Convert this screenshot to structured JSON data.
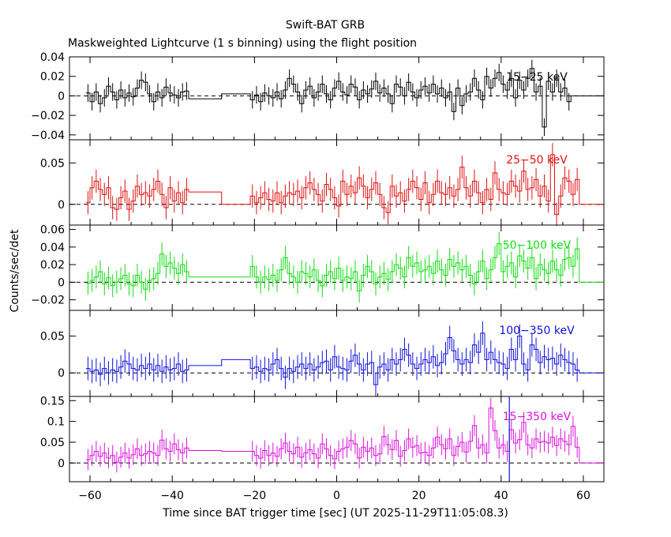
{
  "chart_data": {
    "type": "line",
    "title": "Swift-BAT GRB",
    "subtitle": "Maskweighted Lightcurve (1 s binning) using the flight position",
    "xlabel": "Time since BAT trigger time [sec] (UT 2025-11-29T11:05:08.3)",
    "ylabel": "Counts/sec/det",
    "xlim": [
      -65,
      65
    ],
    "xticks": [
      -60,
      -40,
      -20,
      0,
      20,
      40,
      60
    ],
    "xtick_labels": [
      "−60",
      "−40",
      "−20",
      "0",
      "20",
      "40",
      "60"
    ],
    "marker_line_x": 42,
    "panels": [
      {
        "label": "15−25 keV",
        "color": "#000000",
        "ylim": [
          -0.045,
          0.04
        ],
        "yticks": [
          -0.04,
          -0.02,
          0,
          0.02,
          0.04
        ],
        "ytick_labels": [
          "−0.04",
          "−0.02",
          "0",
          "0.02",
          "0.04"
        ],
        "err": 0.009,
        "plateau": -0.003,
        "gap_value": 0.002,
        "values": [
          0.003,
          -0.006,
          0.004,
          -0.008,
          -0.002,
          0.01,
          0.004,
          -0.004,
          0.006,
          -0.002,
          0.003,
          -0.001,
          0.008,
          0.016,
          0.014,
          0.002,
          -0.006,
          0.004,
          -0.002,
          0.009,
          0.003,
          0.001,
          -0.002,
          0.004,
          0.005,
          -0.004,
          0.001,
          -0.006,
          0.003,
          0.0,
          -0.002,
          0.004,
          -0.003,
          0.006,
          0.018,
          0.012,
          0.004,
          -0.008,
          0.006,
          0.01,
          -0.002,
          0.004,
          0.012,
          0.002,
          -0.004,
          0.008,
          0.015,
          0.004,
          0.001,
          0.012,
          0.009,
          -0.004,
          0.006,
          0.002,
          0.007,
          0.015,
          0.003,
          0.008,
          0.002,
          -0.008,
          0.012,
          0.009,
          0.0,
          0.014,
          0.004,
          -0.002,
          0.006,
          0.01,
          0.003,
          0.012,
          0.002,
          0.008,
          -0.002,
          0.004,
          -0.016,
          0.008,
          -0.01,
          0.002,
          0.004,
          0.018,
          0.006,
          -0.004,
          0.02,
          0.008,
          0.018,
          0.024,
          0.012,
          0.006,
          0.018,
          -0.002,
          0.016,
          0.006,
          0.018,
          0.028,
          0.004,
          0.01,
          -0.032,
          0.015,
          0.004,
          0.018,
          0.004,
          0.008,
          -0.006
        ]
      },
      {
        "label": "25−50 keV",
        "color": "#e01010",
        "ylim": [
          -0.025,
          0.078
        ],
        "yticks": [
          0,
          0.05
        ],
        "ytick_labels": [
          "0",
          "0.05"
        ],
        "err": 0.014,
        "plateau": 0.015,
        "gap_value": 0.0,
        "values": [
          0.002,
          0.02,
          0.028,
          0.018,
          0.012,
          0.02,
          -0.004,
          -0.006,
          0.008,
          0.016,
          -0.006,
          0.004,
          0.022,
          0.012,
          0.014,
          0.01,
          0.018,
          0.028,
          0.012,
          -0.004,
          0.02,
          0.004,
          0.014,
          0.002,
          0.018,
          0.01,
          0.002,
          0.008,
          0.014,
          0.006,
          0.004,
          0.014,
          0.002,
          0.01,
          0.014,
          0.012,
          0.016,
          0.008,
          0.02,
          0.026,
          0.018,
          0.012,
          0.004,
          0.024,
          0.018,
          0.008,
          -0.002,
          0.028,
          0.012,
          0.022,
          0.014,
          0.032,
          0.022,
          0.008,
          0.018,
          0.026,
          0.012,
          -0.004,
          -0.01,
          0.022,
          0.01,
          0.014,
          0.004,
          0.018,
          0.028,
          0.02,
          0.006,
          0.026,
          0.002,
          0.012,
          0.028,
          0.014,
          0.012,
          0.02,
          0.01,
          0.018,
          0.045,
          0.02,
          0.01,
          0.028,
          0.014,
          0.002,
          0.018,
          0.006,
          0.038,
          0.018,
          0.014,
          0.012,
          0.028,
          0.022,
          0.016,
          0.04,
          0.018,
          0.02,
          0.03,
          0.01,
          0.022,
          0.004,
          0.06,
          -0.012,
          0.01,
          0.032,
          0.028,
          0.012,
          0.03
        ]
      },
      {
        "label": "50−100 keV",
        "color": "#10dd10",
        "ylim": [
          -0.032,
          0.065
        ],
        "yticks": [
          -0.02,
          0,
          0.02,
          0.04,
          0.06
        ],
        "ytick_labels": [
          "−0.02",
          "0",
          "0.02",
          "0.04",
          "0.06"
        ],
        "err": 0.013,
        "plateau": 0.006,
        "gap_value": 0.006,
        "values": [
          -0.001,
          0.002,
          0.006,
          0.012,
          -0.002,
          0.005,
          -0.004,
          0.0,
          0.004,
          0.008,
          -0.002,
          -0.004,
          0.008,
          0.0,
          -0.008,
          0.002,
          0.004,
          0.01,
          0.032,
          0.018,
          0.022,
          0.016,
          0.01,
          0.02,
          0.012,
          0.018,
          0.006,
          0.0,
          0.006,
          0.003,
          0.008,
          0.002,
          0.014,
          0.028,
          0.01,
          0.006,
          0.0,
          0.012,
          0.01,
          0.006,
          0.014,
          0.002,
          -0.004,
          0.008,
          0.012,
          0.004,
          0.016,
          0.002,
          0.006,
          0.004,
          0.012,
          -0.01,
          0.008,
          0.018,
          0.012,
          -0.002,
          0.006,
          0.01,
          0.003,
          0.012,
          0.02,
          0.016,
          0.006,
          0.028,
          0.018,
          0.022,
          0.012,
          0.014,
          0.018,
          0.01,
          0.024,
          0.014,
          0.008,
          0.026,
          0.018,
          0.022,
          0.014,
          0.018,
          0.008,
          -0.002,
          0.012,
          0.024,
          0.004,
          0.014,
          0.028,
          0.044,
          0.012,
          0.018,
          0.022,
          0.006,
          0.03,
          0.024,
          0.016,
          0.028,
          0.004,
          0.02,
          0.014,
          0.01,
          0.024,
          0.014,
          0.008,
          0.026,
          0.028,
          0.018,
          0.038
        ]
      },
      {
        "label": "100−350 keV",
        "color": "#1010dd",
        "ylim": [
          -0.032,
          0.085
        ],
        "yticks": [
          0,
          0.05
        ],
        "ytick_labels": [
          "0",
          "0.05"
        ],
        "err": 0.016,
        "plateau": 0.01,
        "gap_value": 0.018,
        "values": [
          0.006,
          0.002,
          0.004,
          -0.002,
          0.006,
          0.0,
          0.004,
          0.002,
          0.008,
          0.016,
          0.012,
          0.006,
          0.004,
          0.01,
          0.006,
          0.012,
          0.004,
          0.01,
          0.002,
          0.008,
          0.004,
          0.006,
          0.012,
          0.002,
          0.004,
          0.006,
          0.008,
          0.002,
          0.006,
          0.004,
          0.012,
          0.018,
          0.006,
          -0.006,
          0.006,
          0.002,
          0.008,
          0.012,
          0.006,
          0.012,
          0.004,
          0.008,
          0.014,
          0.016,
          0.004,
          0.022,
          0.008,
          0.006,
          0.004,
          0.016,
          0.024,
          0.012,
          0.004,
          0.012,
          0.014,
          -0.016,
          0.008,
          0.012,
          0.004,
          0.018,
          0.012,
          0.018,
          0.032,
          0.024,
          0.012,
          0.006,
          0.012,
          0.018,
          0.014,
          0.022,
          0.01,
          0.014,
          0.026,
          0.048,
          0.03,
          0.018,
          0.012,
          0.018,
          0.014,
          0.038,
          0.028,
          0.054,
          0.018,
          0.028,
          0.018,
          0.014,
          0.012,
          0.006,
          0.032,
          0.018,
          0.05,
          0.012,
          0.004,
          0.038,
          0.032,
          0.014,
          0.022,
          0.018,
          0.02,
          0.012,
          0.024,
          0.018,
          0.014,
          0.012,
          0.004
        ]
      },
      {
        "label": "15−350 keV",
        "color": "#dd10dd",
        "ylim": [
          -0.045,
          0.16
        ],
        "yticks": [
          0,
          0.05,
          0.1,
          0.15
        ],
        "ytick_labels": [
          "0",
          "0.05",
          "0.1",
          "0.15"
        ],
        "err": 0.025,
        "plateau": 0.03,
        "gap_value": 0.028,
        "values": [
          0.008,
          0.018,
          0.028,
          0.016,
          0.024,
          0.012,
          0.018,
          0.002,
          0.014,
          0.024,
          0.012,
          0.02,
          0.034,
          0.018,
          0.022,
          0.028,
          0.024,
          0.018,
          0.055,
          0.034,
          0.028,
          0.046,
          0.032,
          0.024,
          0.036,
          0.028,
          0.018,
          0.012,
          0.03,
          0.018,
          0.024,
          0.016,
          0.034,
          0.048,
          0.028,
          0.022,
          0.038,
          0.014,
          0.024,
          0.032,
          0.022,
          0.012,
          0.046,
          0.034,
          0.018,
          0.01,
          0.028,
          0.034,
          0.038,
          0.054,
          0.046,
          0.012,
          0.038,
          0.028,
          0.036,
          0.018,
          0.022,
          0.064,
          0.044,
          0.032,
          0.054,
          0.016,
          0.03,
          0.058,
          0.038,
          0.042,
          0.024,
          0.026,
          0.018,
          0.036,
          0.062,
          0.044,
          0.034,
          0.058,
          0.018,
          0.04,
          0.05,
          0.026,
          0.052,
          0.09,
          0.036,
          0.044,
          0.024,
          0.132,
          0.078,
          0.036,
          0.044,
          0.028,
          0.08,
          0.048,
          0.056,
          0.098,
          0.044,
          0.036,
          0.058,
          0.05,
          0.052,
          0.048,
          0.062,
          0.042,
          0.058,
          0.052,
          0.044,
          0.088,
          0.038
        ]
      }
    ]
  }
}
